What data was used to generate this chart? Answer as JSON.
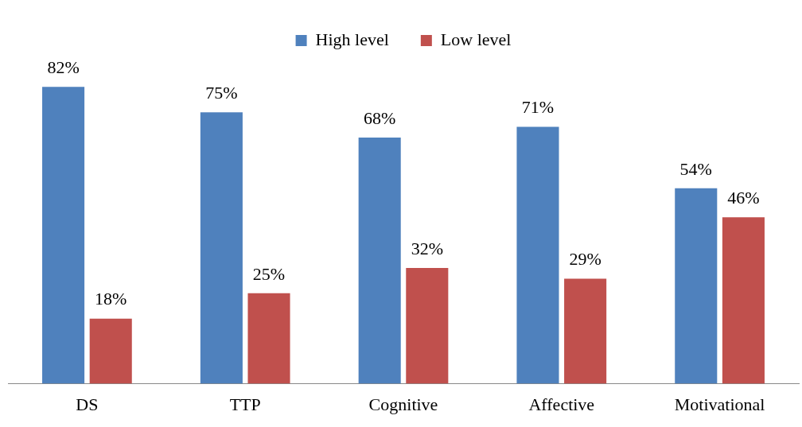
{
  "chart_data": {
    "type": "bar",
    "categories": [
      "DS",
      "TTP",
      "Cognitive",
      "Affective",
      "Motivational"
    ],
    "series": [
      {
        "name": "High level",
        "color": "#4f81bd",
        "values": [
          82,
          75,
          68,
          71,
          54
        ],
        "value_labels": [
          "82%",
          "75%",
          "68%",
          "71%",
          "54%"
        ]
      },
      {
        "name": "Low level",
        "color": "#c0504d",
        "values": [
          18,
          25,
          32,
          29,
          46
        ],
        "value_labels": [
          "18%",
          "25%",
          "32%",
          "29%",
          "46%"
        ]
      }
    ],
    "legend": "top",
    "grid": false
  }
}
